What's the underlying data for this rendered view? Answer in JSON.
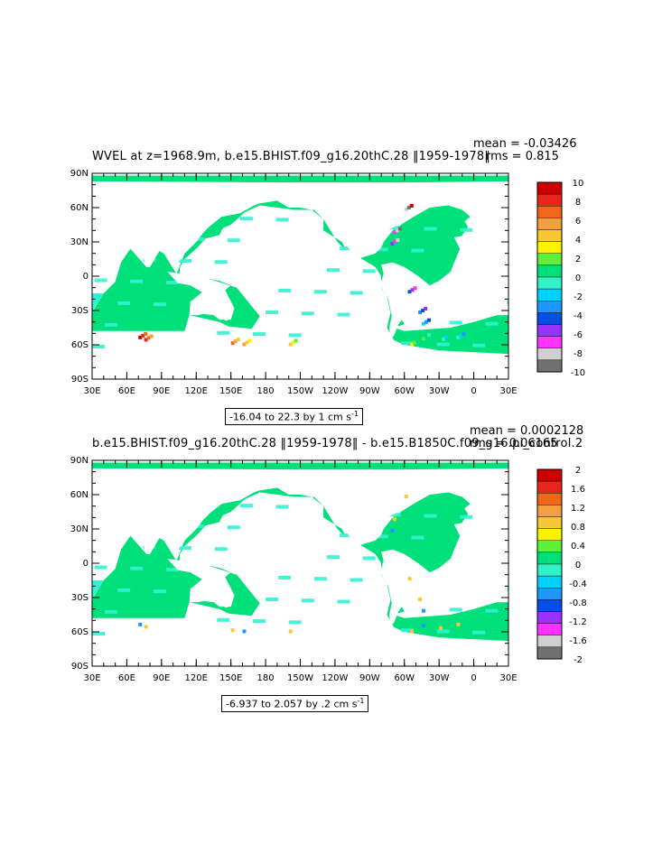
{
  "panels": [
    {
      "title": "WVEL at z=1968.9m, b.e15.BHIST.f09_g16.20thC.28 ‖1959-1978‖",
      "mean": "mean = -0.03426",
      "rms": "rms = 0.815",
      "range_text": "-16.04 to 22.3 by 1 cm s",
      "range_unit_exp": "-1",
      "colorbar_labels": [
        "10",
        "8",
        "6",
        "4",
        "2",
        "0",
        "-2",
        "-4",
        "-6",
        "-8",
        "-10"
      ],
      "hotspot_intensity": "high"
    },
    {
      "title": "b.e15.BHIST.f09_g16.20thC.28 ‖1959-1978‖ - b.e15.B1850C.f09_g16.pi_control.2",
      "mean": "mean = 0.0002128",
      "rms": "rms = 0.06165",
      "range_text": "-6.937 to 2.057 by .2 cm s",
      "range_unit_exp": "-1",
      "colorbar_labels": [
        "2",
        "1.6",
        "1.2",
        "0.8",
        "0.4",
        "0",
        "-0.4",
        "-0.8",
        "-1.2",
        "-1.6",
        "-2"
      ],
      "hotspot_intensity": "low"
    }
  ],
  "axes": {
    "lat_labels": [
      "90N",
      "60N",
      "30N",
      "0",
      "30S",
      "60S",
      "90S"
    ],
    "lon_labels": [
      "30E",
      "60E",
      "90E",
      "120E",
      "150E",
      "180",
      "150W",
      "120W",
      "90W",
      "60W",
      "30W",
      "0",
      "30E"
    ]
  },
  "colors": {
    "scale": [
      "#cc0000",
      "#e8261e",
      "#f26619",
      "#f5a040",
      "#f8c832",
      "#fff200",
      "#5cf23c",
      "#00e07a",
      "#33f2c8",
      "#00d2ff",
      "#1e96ff",
      "#0050e8",
      "#9a32ff",
      "#ff32ff",
      "#d0d0d0",
      "#707070"
    ],
    "ocean_green": "#00e07a",
    "ocean_cyan": "#33f2d2"
  }
}
